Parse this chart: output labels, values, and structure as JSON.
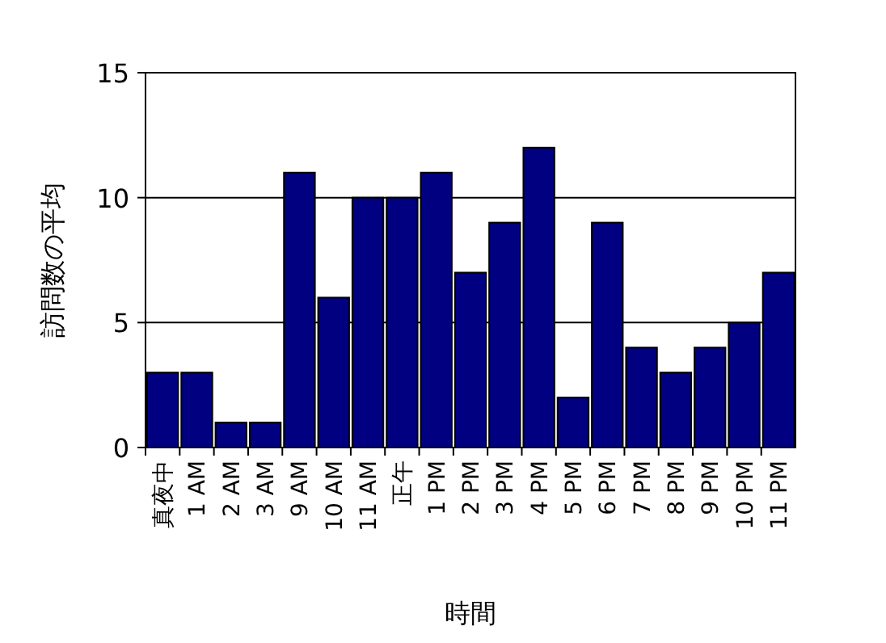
{
  "chart_data": {
    "type": "bar",
    "xlabel": "時間",
    "ylabel": "訪問数の平均",
    "categories": [
      "真夜中",
      "1 AM",
      "2 AM",
      "3 AM",
      "9 AM",
      "10 AM",
      "11 AM",
      "正午",
      "1 PM",
      "2 PM",
      "3 PM",
      "4 PM",
      "5 PM",
      "6 PM",
      "7 PM",
      "8 PM",
      "9 PM",
      "10 PM",
      "11 PM"
    ],
    "values": [
      3,
      3,
      1,
      1,
      11,
      6,
      10,
      10,
      11,
      7,
      9,
      12,
      2,
      9,
      4,
      3,
      4,
      5,
      7
    ],
    "color": "#000080",
    "ylim": [
      0,
      15
    ],
    "yticks": [
      0,
      5,
      10,
      15
    ],
    "grid": "y"
  }
}
